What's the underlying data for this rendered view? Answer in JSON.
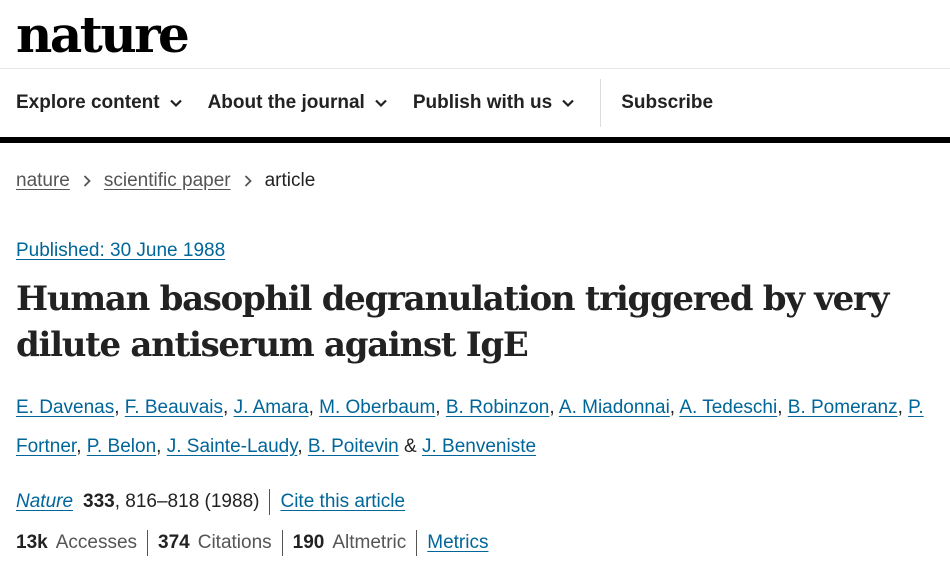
{
  "header": {
    "logo": "nature"
  },
  "nav": {
    "items": [
      {
        "label": "Explore content"
      },
      {
        "label": "About the journal"
      },
      {
        "label": "Publish with us"
      }
    ],
    "subscribe": "Subscribe"
  },
  "breadcrumb": {
    "home": "nature",
    "section": "scientific paper",
    "current": "article"
  },
  "article": {
    "published": "Published: 30 June 1988",
    "title": "Human basophil degranulation triggered by very dilute antiserum against IgE",
    "authors": [
      "E. Davenas",
      "F. Beauvais",
      "J. Amara",
      "M. Oberbaum",
      "B. Robinzon",
      "A. Miadonnai",
      "A. Tedeschi",
      "B. Pomeranz",
      "P. Fortner",
      "P. Belon",
      "J. Sainte-Laudy",
      "B. Poitevin",
      "J. Benveniste"
    ],
    "journal": "Nature",
    "volume": "333",
    "pages": ", 816–818 (1988)",
    "cite_label": "Cite this article"
  },
  "metrics": {
    "accesses_value": "13k",
    "accesses_label": "Accesses",
    "citations_value": "374",
    "citations_label": "Citations",
    "altmetric_value": "190",
    "altmetric_label": "Altmetric",
    "link": "Metrics"
  },
  "icons": {
    "nav_chevron": "chevron-down-icon",
    "breadcrumb_separator": "chevron-right-icon"
  },
  "colors": {
    "link": "#006699",
    "text": "#222222",
    "muted": "#555555"
  }
}
